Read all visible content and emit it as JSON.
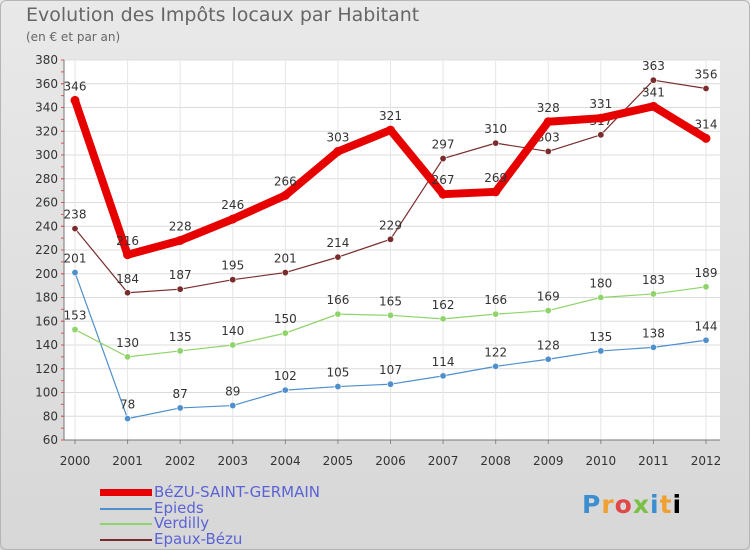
{
  "header": {
    "title": "Evolution des Impôts locaux par Habitant",
    "subtitle": "(en € et par an)"
  },
  "logo": {
    "letters": [
      "P",
      "r",
      "o",
      "x",
      "i",
      "t",
      "i"
    ]
  },
  "chart_data": {
    "type": "line",
    "title": "Evolution des Impôts locaux par Habitant",
    "subtitle": "(en € et par an)",
    "xlabel": "",
    "ylabel": "",
    "ylim": [
      60,
      380
    ],
    "ytick_step": 20,
    "grid": true,
    "legend_position": "bottom-left",
    "x": [
      2000,
      2001,
      2002,
      2003,
      2004,
      2005,
      2006,
      2007,
      2008,
      2009,
      2010,
      2011,
      2012
    ],
    "series": [
      {
        "name": "BéZU-SAINT-GERMAIN",
        "color": "#e60000",
        "emphasis": true,
        "values": [
          346,
          216,
          228,
          246,
          266,
          303,
          321,
          267,
          269,
          328,
          331,
          341,
          314
        ]
      },
      {
        "name": "Epieds",
        "color": "#4f8fcc",
        "emphasis": false,
        "values": [
          201,
          78,
          87,
          89,
          102,
          105,
          107,
          114,
          122,
          128,
          135,
          138,
          144
        ]
      },
      {
        "name": "Verdilly",
        "color": "#8fd46a",
        "emphasis": false,
        "values": [
          153,
          130,
          135,
          140,
          150,
          166,
          165,
          162,
          166,
          169,
          180,
          183,
          189
        ]
      },
      {
        "name": "Epaux-Bézu",
        "color": "#7a2c2c",
        "emphasis": false,
        "values": [
          238,
          184,
          187,
          195,
          201,
          214,
          229,
          297,
          310,
          303,
          317,
          363,
          356
        ]
      }
    ]
  }
}
